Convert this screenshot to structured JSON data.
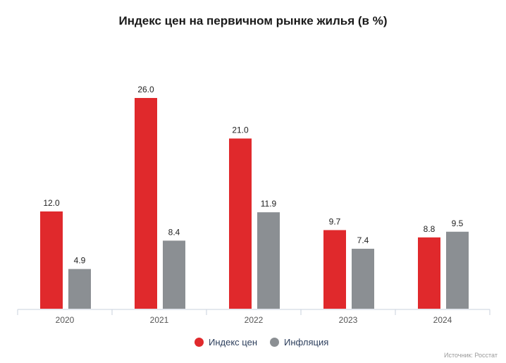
{
  "chart_data": {
    "type": "bar",
    "title": "Индекс цен на первичном рынке жилья (в %)",
    "categories": [
      "2020",
      "2021",
      "2022",
      "2023",
      "2024"
    ],
    "series": [
      {
        "name": "Индекс цен",
        "color": "#e0292c",
        "values": [
          12.0,
          26.0,
          21.0,
          9.7,
          8.8
        ]
      },
      {
        "name": "Инфляция",
        "color": "#8b8f93",
        "values": [
          4.9,
          8.4,
          11.9,
          7.4,
          9.5
        ]
      }
    ],
    "xlabel": "",
    "ylabel": "",
    "ylim": [
      0,
      26
    ],
    "grid": false,
    "legend": "bottom-center",
    "source": "Источник: Росстат"
  }
}
